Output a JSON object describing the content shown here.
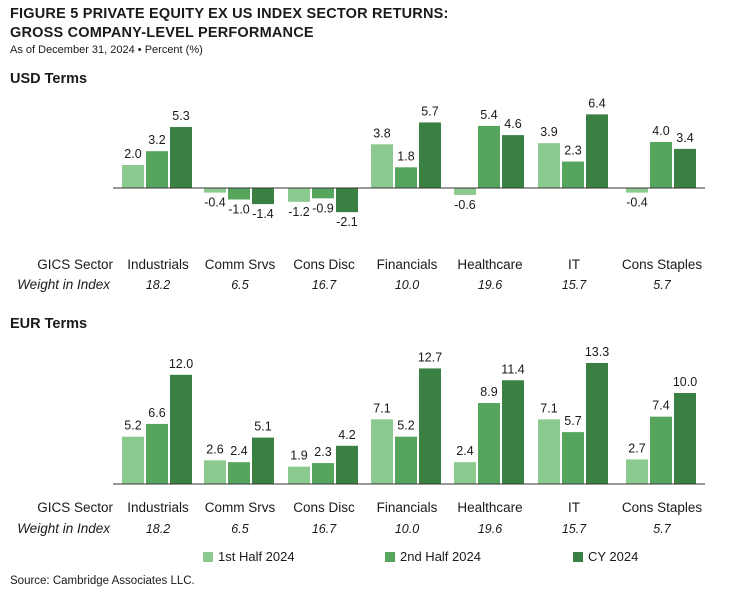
{
  "title_line1": "FIGURE 5   PRIVATE EQUITY EX US INDEX SECTOR RETURNS:",
  "title_line2": "GROSS COMPANY-LEVEL PERFORMANCE",
  "subtitle": "As of December 31, 2024 • Percent (%)",
  "row_label_sector": "GICS Sector",
  "row_label_weight": "Weight in Index",
  "source": "Source: Cambridge Associates LLC.",
  "colors": {
    "h1": "#8cc98f",
    "h2": "#55a55c",
    "cy": "#3a8042",
    "axis": "#333333"
  },
  "legend": [
    {
      "name": "1st Half 2024",
      "color": "#8cc98f"
    },
    {
      "name": "2nd Half 2024",
      "color": "#55a55c"
    },
    {
      "name": "CY 2024",
      "color": "#3a8042"
    }
  ],
  "chart_data": [
    {
      "type": "bar",
      "title": "USD Terms",
      "categories": [
        "Industrials",
        "Comm Srvs",
        "Cons Disc",
        "Financials",
        "Healthcare",
        "IT",
        "Cons Staples"
      ],
      "weights": [
        "18.2",
        "6.5",
        "16.7",
        "10.0",
        "19.6",
        "15.7",
        "5.7"
      ],
      "series": [
        {
          "name": "1st Half 2024",
          "values": [
            2.0,
            -0.4,
            -1.2,
            3.8,
            -0.6,
            3.9,
            -0.4
          ]
        },
        {
          "name": "2nd Half 2024",
          "values": [
            3.2,
            -1.0,
            -0.9,
            1.8,
            5.4,
            2.3,
            4.0
          ]
        },
        {
          "name": "CY 2024",
          "values": [
            5.3,
            -1.4,
            -2.1,
            5.7,
            4.6,
            6.4,
            3.4
          ]
        }
      ],
      "labels": [
        [
          "2.0",
          "-0.4",
          "-1.2",
          "3.8",
          "-0.6",
          "3.9",
          "-0.4"
        ],
        [
          "3.2",
          "-1.0",
          "-0.9",
          "1.8",
          "5.4",
          "2.3",
          "4.0"
        ],
        [
          "5.3",
          "-1.4",
          "-2.1",
          "5.7",
          "4.6",
          "6.4",
          "3.4"
        ]
      ]
    },
    {
      "type": "bar",
      "title": "EUR Terms",
      "categories": [
        "Industrials",
        "Comm Srvs",
        "Cons Disc",
        "Financials",
        "Healthcare",
        "IT",
        "Cons Staples"
      ],
      "weights": [
        "18.2",
        "6.5",
        "16.7",
        "10.0",
        "19.6",
        "15.7",
        "5.7"
      ],
      "series": [
        {
          "name": "1st Half 2024",
          "values": [
            5.2,
            2.6,
            1.9,
            7.1,
            2.4,
            7.1,
            2.7
          ]
        },
        {
          "name": "2nd Half 2024",
          "values": [
            6.6,
            2.4,
            2.3,
            5.2,
            8.9,
            5.7,
            7.4
          ]
        },
        {
          "name": "CY 2024",
          "values": [
            12.0,
            5.1,
            4.2,
            12.7,
            11.4,
            13.3,
            10.0
          ]
        }
      ],
      "labels": [
        [
          "5.2",
          "2.6",
          "1.9",
          "7.1",
          "2.4",
          "7.1",
          "2.7"
        ],
        [
          "6.6",
          "2.4",
          "2.3",
          "5.2",
          "8.9",
          "5.7",
          "7.4"
        ],
        [
          "12.0",
          "5.1",
          "4.2",
          "12.7",
          "11.4",
          "13.3",
          "10.0"
        ]
      ]
    }
  ]
}
